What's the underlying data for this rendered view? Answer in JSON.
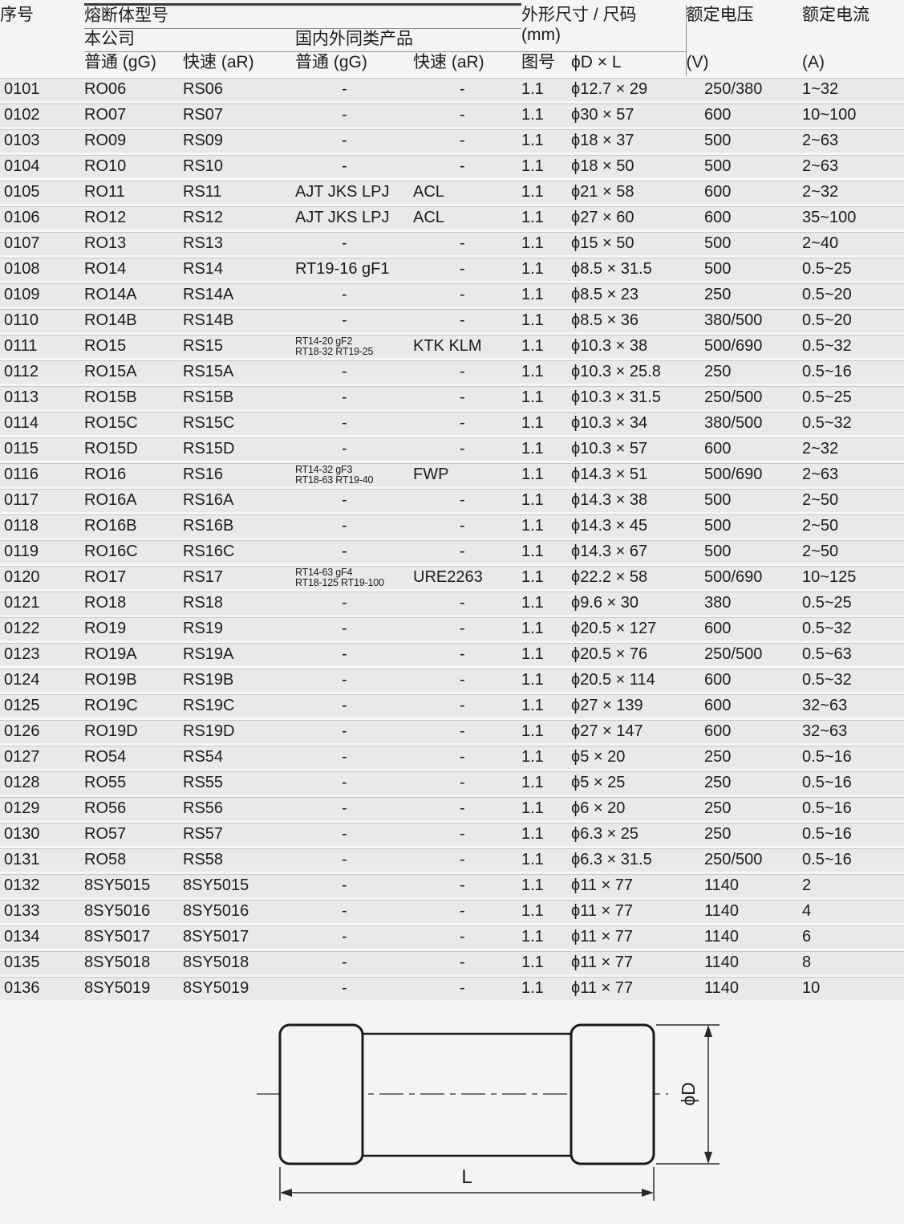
{
  "table": {
    "headers": {
      "serial": "序号",
      "model_group": "熔断体型号",
      "company_group": "本公司",
      "similar_group": "国内外同类产品",
      "gg_company": "普通 (gG)",
      "ar_company": "快速 (aR)",
      "gg_similar": "普通 (gG)",
      "ar_similar": "快速 (aR)",
      "dims_line1": "外形尺寸 / 尺码",
      "dims_line2": "(mm)",
      "figure_no": "图号",
      "dxl": "ϕD × L",
      "voltage": "额定电压",
      "voltage_unit": "(V)",
      "current": "额定电流",
      "current_unit": "(A)"
    },
    "rows": [
      [
        "0101",
        "RO06",
        "RS06",
        "-",
        "-",
        "1.1",
        "ϕ12.7 × 29",
        "250/380",
        "1~32"
      ],
      [
        "0102",
        "RO07",
        "RS07",
        "-",
        "-",
        "1.1",
        "ϕ30 × 57",
        "600",
        "10~100"
      ],
      [
        "0103",
        "RO09",
        "RS09",
        "-",
        "-",
        "1.1",
        "ϕ18 × 37",
        "500",
        "2~63"
      ],
      [
        "0104",
        "RO10",
        "RS10",
        "-",
        "-",
        "1.1",
        "ϕ18 × 50",
        "500",
        "2~63"
      ],
      [
        "0105",
        "RO11",
        "RS11",
        "AJT JKS LPJ",
        "ACL",
        "1.1",
        "ϕ21 × 58",
        "600",
        "2~32"
      ],
      [
        "0106",
        "RO12",
        "RS12",
        "AJT JKS LPJ",
        "ACL",
        "1.1",
        "ϕ27 × 60",
        "600",
        "35~100"
      ],
      [
        "0107",
        "RO13",
        "RS13",
        "-",
        "-",
        "1.1",
        "ϕ15 × 50",
        "500",
        "2~40"
      ],
      [
        "0108",
        "RO14",
        "RS14",
        "RT19-16 gF1",
        "-",
        "1.1",
        "ϕ8.5 × 31.5",
        "500",
        "0.5~25"
      ],
      [
        "0109",
        "RO14A",
        "RS14A",
        "-",
        "-",
        "1.1",
        "ϕ8.5 × 23",
        "250",
        "0.5~20"
      ],
      [
        "0110",
        "RO14B",
        "RS14B",
        "-",
        "-",
        "1.1",
        "ϕ8.5 × 36",
        "380/500",
        "0.5~20"
      ],
      [
        "0111",
        "RO15",
        "RS15",
        [
          "RT14-20 gF2",
          "RT18-32 RT19-25"
        ],
        "KTK KLM",
        "1.1",
        "ϕ10.3 × 38",
        "500/690",
        "0.5~32"
      ],
      [
        "0112",
        "RO15A",
        "RS15A",
        "-",
        "-",
        "1.1",
        "ϕ10.3 × 25.8",
        "250",
        "0.5~16"
      ],
      [
        "0113",
        "RO15B",
        "RS15B",
        "-",
        "-",
        "1.1",
        "ϕ10.3 × 31.5",
        "250/500",
        "0.5~25"
      ],
      [
        "0114",
        "RO15C",
        "RS15C",
        "-",
        "-",
        "1.1",
        "ϕ10.3 × 34",
        "380/500",
        "0.5~32"
      ],
      [
        "0115",
        "RO15D",
        "RS15D",
        "-",
        "-",
        "1.1",
        "ϕ10.3 × 57",
        "600",
        "2~32"
      ],
      [
        "0116",
        "RO16",
        "RS16",
        [
          "RT14-32 gF3",
          "RT18-63 RT19-40"
        ],
        "FWP",
        "1.1",
        "ϕ14.3 × 51",
        "500/690",
        "2~63"
      ],
      [
        "0117",
        "RO16A",
        "RS16A",
        "-",
        "-",
        "1.1",
        "ϕ14.3 × 38",
        "500",
        "2~50"
      ],
      [
        "0118",
        "RO16B",
        "RS16B",
        "-",
        "-",
        "1.1",
        "ϕ14.3 × 45",
        "500",
        "2~50"
      ],
      [
        "0119",
        "RO16C",
        "RS16C",
        "-",
        "-",
        "1.1",
        "ϕ14.3 × 67",
        "500",
        "2~50"
      ],
      [
        "0120",
        "RO17",
        "RS17",
        [
          "RT14-63 gF4",
          "RT18-125 RT19-100"
        ],
        "URE2263",
        "1.1",
        "ϕ22.2 × 58",
        "500/690",
        "10~125"
      ],
      [
        "0121",
        "RO18",
        "RS18",
        "-",
        "-",
        "1.1",
        "ϕ9.6 × 30",
        "380",
        "0.5~25"
      ],
      [
        "0122",
        "RO19",
        "RS19",
        "-",
        "-",
        "1.1",
        "ϕ20.5 × 127",
        "600",
        "0.5~32"
      ],
      [
        "0123",
        "RO19A",
        "RS19A",
        "-",
        "-",
        "1.1",
        "ϕ20.5 × 76",
        "250/500",
        "0.5~63"
      ],
      [
        "0124",
        "RO19B",
        "RS19B",
        "-",
        "-",
        "1.1",
        "ϕ20.5 × 114",
        "600",
        "0.5~32"
      ],
      [
        "0125",
        "RO19C",
        "RS19C",
        "-",
        "-",
        "1.1",
        "ϕ27 × 139",
        "600",
        "32~63"
      ],
      [
        "0126",
        "RO19D",
        "RS19D",
        "-",
        "-",
        "1.1",
        "ϕ27 × 147",
        "600",
        "32~63"
      ],
      [
        "0127",
        "RO54",
        "RS54",
        "-",
        "-",
        "1.1",
        "ϕ5 × 20",
        "250",
        "0.5~16"
      ],
      [
        "0128",
        "RO55",
        "RS55",
        "-",
        "-",
        "1.1",
        "ϕ5 × 25",
        "250",
        "0.5~16"
      ],
      [
        "0129",
        "RO56",
        "RS56",
        "-",
        "-",
        "1.1",
        "ϕ6 × 20",
        "250",
        "0.5~16"
      ],
      [
        "0130",
        "RO57",
        "RS57",
        "-",
        "-",
        "1.1",
        "ϕ6.3 × 25",
        "250",
        "0.5~16"
      ],
      [
        "0131",
        "RO58",
        "RS58",
        "-",
        "-",
        "1.1",
        "ϕ6.3 × 31.5",
        "250/500",
        "0.5~16"
      ],
      [
        "0132",
        "8SY5015",
        "8SY5015",
        "-",
        "-",
        "1.1",
        "ϕ11 × 77",
        "1140",
        "2"
      ],
      [
        "0133",
        "8SY5016",
        "8SY5016",
        "-",
        "-",
        "1.1",
        "ϕ11 × 77",
        "1140",
        "4"
      ],
      [
        "0134",
        "8SY5017",
        "8SY5017",
        "-",
        "-",
        "1.1",
        "ϕ11 × 77",
        "1140",
        "6"
      ],
      [
        "0135",
        "8SY5018",
        "8SY5018",
        "-",
        "-",
        "1.1",
        "ϕ11 × 77",
        "1140",
        "8"
      ],
      [
        "0136",
        "8SY5019",
        "8SY5019",
        "-",
        "-",
        "1.1",
        "ϕ11 × 77",
        "1140",
        "10"
      ]
    ]
  },
  "diagram": {
    "label_diameter": "ϕD",
    "label_length": "L"
  },
  "colors": {
    "page_bg": "#f4f4f4",
    "row_bar": "#e9e9e9",
    "row_gap": "#f6f6f6",
    "hairline": "#c9c9c9",
    "header_rule": "#8f8f8f",
    "header_rule_dark": "#4a4a4a",
    "line_dark": "#1a1a1a"
  }
}
